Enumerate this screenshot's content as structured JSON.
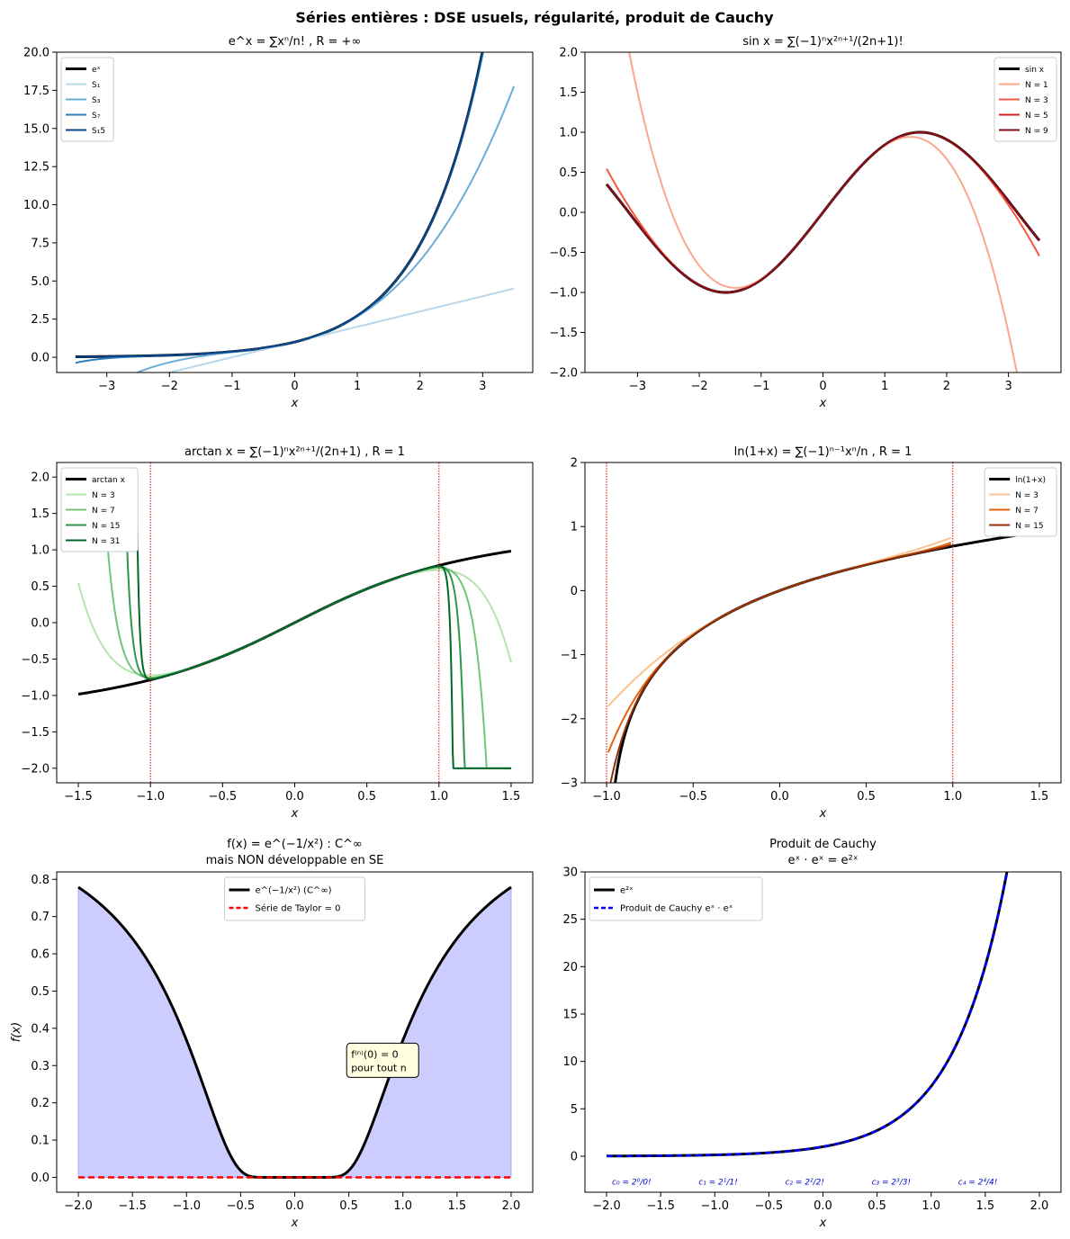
{
  "suptitle": "Séries entières : DSE usuels, régularité, produit de Cauchy",
  "chart_data": [
    {
      "id": "exp",
      "type": "line",
      "title": "e^x = ∑xⁿ/n! , R = +∞",
      "xlabel": "x",
      "ylabel": "",
      "xlim": [
        -3.8,
        3.8
      ],
      "ylim": [
        -1,
        20
      ],
      "xticks": [
        -3,
        -2,
        -1,
        0,
        1,
        2,
        3
      ],
      "yticks": [
        0.0,
        2.5,
        5.0,
        7.5,
        10.0,
        12.5,
        15.0,
        17.5,
        20.0
      ],
      "ytick_decimals": 1,
      "xtick_decimals": 0,
      "legend_position": "upper-left",
      "series": [
        {
          "name": "eˣ",
          "func": "exp",
          "color": "#000000",
          "width": 3
        },
        {
          "name": "S₁",
          "func": "exp_taylor",
          "n": 1,
          "color": "#bad6eb",
          "width": 2
        },
        {
          "name": "S₃",
          "func": "exp_taylor",
          "n": 3,
          "color": "#6aaed6",
          "width": 2
        },
        {
          "name": "S₇",
          "func": "exp_taylor",
          "n": 7,
          "color": "#2e7ebc",
          "width": 2
        },
        {
          "name": "S₁5",
          "func": "exp_taylor",
          "n": 15,
          "color": "#08468b",
          "width": 2
        }
      ],
      "x_range": [
        -3.5,
        3.5
      ]
    },
    {
      "id": "sin",
      "type": "line",
      "title": "sin x = ∑(−1)ⁿx²ⁿ⁺¹/(2n+1)!",
      "xlabel": "x",
      "ylabel": "",
      "xlim": [
        -3.85,
        3.85
      ],
      "ylim": [
        -2,
        2
      ],
      "xticks": [
        -3,
        -2,
        -1,
        0,
        1,
        2,
        3
      ],
      "yticks": [
        -2.0,
        -1.5,
        -1.0,
        -0.5,
        0.0,
        0.5,
        1.0,
        1.5,
        2.0
      ],
      "ytick_decimals": 1,
      "xtick_decimals": 0,
      "legend_position": "upper-right",
      "series": [
        {
          "name": "sin x",
          "func": "sin",
          "color": "#000000",
          "width": 3
        },
        {
          "name": "N = 1",
          "func": "sin_taylor",
          "n": 1,
          "color": "#fca68a",
          "width": 2
        },
        {
          "name": "N = 3",
          "func": "sin_taylor",
          "n": 3,
          "color": "#f6583f",
          "width": 2
        },
        {
          "name": "N = 5",
          "func": "sin_taylor",
          "n": 5,
          "color": "#d42020",
          "width": 2
        },
        {
          "name": "N = 9",
          "func": "sin_taylor",
          "n": 9,
          "color": "#830d18",
          "width": 2
        }
      ],
      "x_range": [
        -3.5,
        3.5
      ]
    },
    {
      "id": "arctan",
      "type": "line",
      "title": "arctan x = ∑(−1)ⁿx²ⁿ⁺¹/(2n+1) , R = 1",
      "xlabel": "x",
      "ylabel": "",
      "xlim": [
        -1.65,
        1.65
      ],
      "ylim": [
        -2.2,
        2.2
      ],
      "xticks": [
        -1.5,
        -1.0,
        -0.5,
        0.0,
        0.5,
        1.0,
        1.5
      ],
      "yticks": [
        -2.0,
        -1.5,
        -1.0,
        -0.5,
        0.0,
        0.5,
        1.0,
        1.5,
        2.0
      ],
      "ytick_decimals": 1,
      "xtick_decimals": 1,
      "legend_position": "upper-left",
      "vlines": [
        -1,
        1
      ],
      "series": [
        {
          "name": "arctan x",
          "func": "atan",
          "color": "#000000",
          "width": 3
        },
        {
          "name": "N = 3",
          "func": "atan_taylor",
          "n": 3,
          "color": "#b7e2b1",
          "width": 2
        },
        {
          "name": "N = 7",
          "func": "atan_taylor",
          "n": 7,
          "color": "#73c476",
          "width": 2
        },
        {
          "name": "N = 15",
          "func": "atan_taylor",
          "n": 15,
          "color": "#2f974e",
          "width": 2
        },
        {
          "name": "N = 31",
          "func": "atan_taylor",
          "n": 31,
          "color": "#00692a",
          "width": 2
        }
      ],
      "x_range": [
        -1.5,
        1.5
      ],
      "clip": [
        -2,
        2
      ]
    },
    {
      "id": "log",
      "type": "line",
      "title": "ln(1+x) = ∑(−1)ⁿ⁻¹xⁿ/n , R = 1",
      "xlabel": "x",
      "ylabel": "",
      "xlim": [
        -1.125,
        1.625
      ],
      "ylim": [
        -3,
        2
      ],
      "xticks": [
        -1.0,
        -0.5,
        0.0,
        0.5,
        1.0,
        1.5
      ],
      "yticks": [
        -3,
        -2,
        -1,
        0,
        1,
        2
      ],
      "ytick_decimals": 0,
      "xtick_decimals": 1,
      "legend_position": "upper-right",
      "vlines": [
        -1,
        1
      ],
      "series": [
        {
          "name": "ln(1+x)",
          "func": "log1p",
          "color": "#000000",
          "width": 3
        },
        {
          "name": "N = 3",
          "func": "log_taylor",
          "n": 3,
          "color": "#fdc28c",
          "width": 2
        },
        {
          "name": "N = 7",
          "func": "log_taylor",
          "n": 7,
          "color": "#e5620f",
          "width": 2
        },
        {
          "name": "N = 15",
          "func": "log_taylor",
          "n": 15,
          "color": "#932f05",
          "width": 2
        }
      ],
      "x_range": [
        -0.99,
        1.5
      ],
      "taylor_x_range": [
        -0.99,
        0.99
      ]
    },
    {
      "id": "flat",
      "type": "area",
      "title_line1": "f(x) = e^(−1/x²) : C^∞",
      "title_line2": "mais NON développable en SE",
      "xlabel": "x",
      "ylabel": "f(x)",
      "xlim": [
        -2.2,
        2.2
      ],
      "ylim": [
        -0.04,
        0.82
      ],
      "xticks": [
        -2.0,
        -1.5,
        -1.0,
        -0.5,
        0.0,
        0.5,
        1.0,
        1.5,
        2.0
      ],
      "yticks": [
        0.0,
        0.1,
        0.2,
        0.3,
        0.4,
        0.5,
        0.6,
        0.7,
        0.8
      ],
      "ytick_decimals": 1,
      "xtick_decimals": 1,
      "legend_position": "upper-center",
      "annotation_line1": "f⁽ⁿ⁾(0) = 0",
      "annotation_line2": "pour tout n",
      "series": [
        {
          "name": "e^(−1/x²) (C^∞)",
          "func": "flat",
          "color": "#000000",
          "width": 3,
          "fill": "#ccccff"
        },
        {
          "name": "Série de Taylor = 0",
          "func": "zero",
          "color": "#ff0000",
          "width": 2.5,
          "dashed": true
        }
      ],
      "x_range": [
        -2,
        2
      ]
    },
    {
      "id": "cauchy",
      "type": "line",
      "title_line1": "Produit de Cauchy",
      "title_line2": "eˣ · eˣ = e²ˣ",
      "xlabel": "x",
      "ylabel": "",
      "xlim": [
        -2.2,
        2.2
      ],
      "ylim": [
        -3.8,
        30
      ],
      "xticks": [
        -2.0,
        -1.5,
        -1.0,
        -0.5,
        0.0,
        0.5,
        1.0,
        1.5,
        2.0
      ],
      "yticks": [
        0,
        5,
        10,
        15,
        20,
        25,
        30
      ],
      "ytick_decimals": 0,
      "xtick_decimals": 1,
      "legend_position": "upper-left",
      "series": [
        {
          "name": "e²ˣ",
          "func": "exp2",
          "color": "#000000",
          "width": 3
        },
        {
          "name": "Produit de Cauchy eˣ · eˣ",
          "func": "exp2",
          "color": "#0000ff",
          "width": 2.5,
          "dashed": true
        }
      ],
      "x_range": [
        -2,
        2
      ],
      "coef_labels": [
        {
          "x": -1.95,
          "text": "c₀ = 2⁰/0!"
        },
        {
          "x": -1.15,
          "text": "c₁ = 2¹/1!"
        },
        {
          "x": -0.35,
          "text": "c₂ = 2²/2!"
        },
        {
          "x": 0.45,
          "text": "c₃ = 2³/3!"
        },
        {
          "x": 1.25,
          "text": "c₄ = 2⁴/4!"
        }
      ],
      "coef_y": -2.6
    }
  ]
}
